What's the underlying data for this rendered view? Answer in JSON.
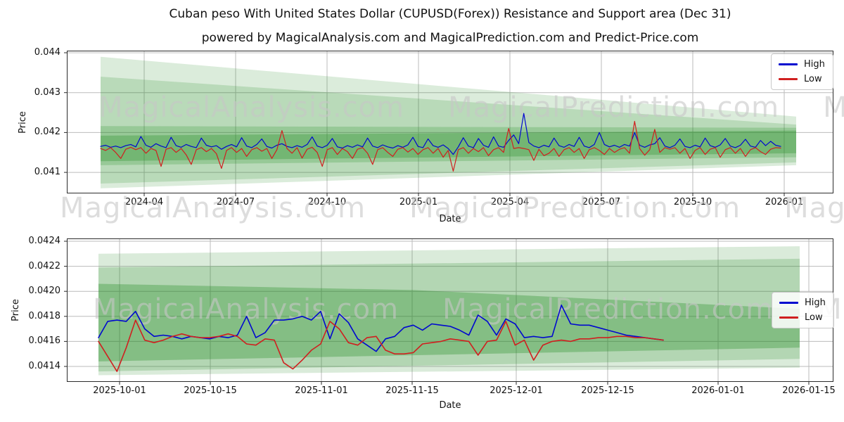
{
  "title": "Cuban peso With United States Dollar (CUPUSD(Forex)) Resistance and Support area (Dec 31)",
  "subtitle": "powered by MagicalAnalysis.com and MagicalPrediction.com and Predict-Price.com",
  "watermark": {
    "words": [
      "MagicalAnalysis.com",
      "MagicalPrediction.com",
      "MagicalAnalysis.com"
    ]
  },
  "colors": {
    "high": "#0008cf",
    "low": "#d01f1f",
    "band_green": "#228B22",
    "grid": "#bbbbbb",
    "spine": "#2b2b2b"
  },
  "chart_data": [
    {
      "type": "line",
      "xlabel": "Date",
      "ylabel": "Price",
      "x_tick_labels": [
        "2024-04",
        "2024-07",
        "2024-10",
        "2025-01",
        "2025-04",
        "2025-07",
        "2025-10",
        "2026-01"
      ],
      "y_tick_labels": [
        "0.044",
        "0.043",
        "0.042",
        "0.041"
      ],
      "y_tick_values": [
        0.044,
        0.043,
        0.042,
        0.041
      ],
      "ylim": [
        0.04047,
        0.04405
      ],
      "x_range": [
        "2024-02-17",
        "2025-12-28"
      ],
      "grid": true,
      "legend_position": "upper right",
      "series": [
        {
          "name": "High",
          "values": [
            0.04165,
            0.04168,
            0.04163,
            0.04166,
            0.04162,
            0.04167,
            0.0417,
            0.04164,
            0.0419,
            0.04168,
            0.04163,
            0.04172,
            0.04166,
            0.04162,
            0.04188,
            0.04167,
            0.04163,
            0.0417,
            0.04165,
            0.04162,
            0.04186,
            0.04168,
            0.04164,
            0.04167,
            0.04158,
            0.04165,
            0.0417,
            0.04164,
            0.04187,
            0.04166,
            0.04162,
            0.0417,
            0.04184,
            0.04165,
            0.04161,
            0.04168,
            0.04172,
            0.04165,
            0.04162,
            0.04167,
            0.04163,
            0.0417,
            0.04189,
            0.04166,
            0.04162,
            0.04168,
            0.04185,
            0.04164,
            0.04161,
            0.04167,
            0.04163,
            0.04169,
            0.04164,
            0.04186,
            0.04166,
            0.04162,
            0.04169,
            0.04164,
            0.04161,
            0.04167,
            0.04163,
            0.04169,
            0.04188,
            0.04165,
            0.04162,
            0.04184,
            0.04167,
            0.04163,
            0.04169,
            0.0416,
            0.04145,
            0.04164,
            0.04187,
            0.04166,
            0.04162,
            0.04185,
            0.04168,
            0.04163,
            0.04189,
            0.04166,
            0.04163,
            0.0418,
            0.04194,
            0.04172,
            0.04248,
            0.04175,
            0.04166,
            0.04162,
            0.04168,
            0.04164,
            0.04186,
            0.04167,
            0.04163,
            0.0417,
            0.04165,
            0.04188,
            0.04166,
            0.04162,
            0.0417,
            0.042,
            0.0417,
            0.04164,
            0.04168,
            0.04163,
            0.0417,
            0.04166,
            0.042,
            0.04168,
            0.04163,
            0.04169,
            0.04172,
            0.04187,
            0.04166,
            0.04162,
            0.04168,
            0.04184,
            0.04165,
            0.04162,
            0.04168,
            0.04164,
            0.04186,
            0.04167,
            0.04163,
            0.04169,
            0.04185,
            0.04166,
            0.04162,
            0.04168,
            0.04183,
            0.04166,
            0.04163,
            0.0418,
            0.04167,
            0.04178,
            0.04168,
            0.04165
          ]
        },
        {
          "name": "Low",
          "values": [
            0.0416,
            0.04155,
            0.04162,
            0.0415,
            0.04135,
            0.04158,
            0.04163,
            0.04157,
            0.04162,
            0.04148,
            0.0416,
            0.04155,
            0.04115,
            0.04158,
            0.04162,
            0.0415,
            0.0416,
            0.04144,
            0.0412,
            0.04157,
            0.04162,
            0.04152,
            0.0416,
            0.04147,
            0.0411,
            0.04155,
            0.04162,
            0.0415,
            0.0416,
            0.0414,
            0.04157,
            0.04162,
            0.04153,
            0.0416,
            0.04135,
            0.04157,
            0.04205,
            0.0416,
            0.04148,
            0.04162,
            0.04136,
            0.04158,
            0.04163,
            0.0415,
            0.04115,
            0.04157,
            0.04162,
            0.04145,
            0.0416,
            0.04152,
            0.04135,
            0.04158,
            0.04162,
            0.04148,
            0.0412,
            0.04157,
            0.04162,
            0.0415,
            0.0414,
            0.04158,
            0.04162,
            0.04151,
            0.0416,
            0.04145,
            0.04157,
            0.04162,
            0.04148,
            0.0416,
            0.04138,
            0.04155,
            0.04103,
            0.04157,
            0.04162,
            0.04148,
            0.0416,
            0.04152,
            0.04162,
            0.04142,
            0.04157,
            0.04162,
            0.0415,
            0.0421,
            0.0416,
            0.04162,
            0.0416,
            0.04157,
            0.0413,
            0.04158,
            0.04142,
            0.04148,
            0.0416,
            0.0414,
            0.04157,
            0.04162,
            0.0415,
            0.0416,
            0.04135,
            0.04157,
            0.04162,
            0.04155,
            0.04145,
            0.0416,
            0.0415,
            0.04158,
            0.04162,
            0.04148,
            0.04228,
            0.0416,
            0.04143,
            0.04157,
            0.04208,
            0.0415,
            0.04162,
            0.04158,
            0.04162,
            0.04148,
            0.0416,
            0.04135,
            0.04155,
            0.04162,
            0.04145,
            0.04158,
            0.04162,
            0.04138,
            0.04157,
            0.04162,
            0.04148,
            0.0416,
            0.0414,
            0.04157,
            0.04162,
            0.04152,
            0.04145,
            0.04158,
            0.04162,
            0.04161
          ]
        }
      ],
      "bands": [
        {
          "alpha": 0.16,
          "top": [
            [
              0,
              0.0439
            ],
            [
              1,
              0.0424
            ]
          ],
          "bottom": [
            [
              0,
              0.0406
            ],
            [
              1,
              0.04118
            ]
          ]
        },
        {
          "alpha": 0.18,
          "top": [
            [
              0,
              0.0434
            ],
            [
              1,
              0.0422
            ]
          ],
          "bottom": [
            [
              0,
              0.04072
            ],
            [
              1,
              0.04125
            ]
          ]
        },
        {
          "alpha": 0.22,
          "top": [
            [
              0,
              0.04216
            ],
            [
              1,
              0.04212
            ]
          ],
          "bottom": [
            [
              0,
              0.04118
            ],
            [
              1,
              0.04138
            ]
          ]
        },
        {
          "alpha": 0.3,
          "top": [
            [
              0,
              0.04192
            ],
            [
              1,
              0.04205
            ]
          ],
          "bottom": [
            [
              0,
              0.04128
            ],
            [
              1,
              0.04148
            ]
          ]
        }
      ]
    },
    {
      "type": "line",
      "xlabel": "Date",
      "ylabel": "Price",
      "x_tick_labels": [
        "2025-10-01",
        "2025-10-15",
        "2025-11-01",
        "2025-11-15",
        "2025-12-01",
        "2025-12-15",
        "2026-01-01",
        "2026-01-15"
      ],
      "y_tick_labels": [
        "0.0424",
        "0.0422",
        "0.0420",
        "0.0418",
        "0.0416",
        "0.0414"
      ],
      "y_tick_values": [
        0.0424,
        0.0422,
        0.042,
        0.0418,
        0.0416,
        0.0414
      ],
      "ylim": [
        0.041277,
        0.042422
      ],
      "x_range": [
        "2025-09-28",
        "2025-12-24"
      ],
      "grid": true,
      "legend_position": "center right",
      "series": [
        {
          "name": "High",
          "values": [
            0.04163,
            0.04176,
            0.04177,
            0.04176,
            0.04184,
            0.0417,
            0.04164,
            0.04165,
            0.04164,
            0.04162,
            0.04164,
            0.04163,
            0.04162,
            0.04164,
            0.04163,
            0.04165,
            0.0418,
            0.04163,
            0.04167,
            0.04177,
            0.04177,
            0.04178,
            0.0418,
            0.04177,
            0.04184,
            0.04162,
            0.04182,
            0.04175,
            0.04162,
            0.04157,
            0.04152,
            0.04162,
            0.04164,
            0.04171,
            0.04173,
            0.04169,
            0.04174,
            0.04173,
            0.04172,
            0.04169,
            0.04165,
            0.04181,
            0.04176,
            0.04165,
            0.04178,
            0.04174,
            0.04163,
            0.04164,
            0.04163,
            0.04164,
            0.04189,
            0.04174,
            0.04173,
            0.04173,
            0.04171,
            0.04169,
            0.04167,
            0.04165,
            0.04164,
            0.04163,
            0.04162,
            0.04161
          ]
        },
        {
          "name": "Low",
          "values": [
            0.0416,
            0.04148,
            0.04136,
            0.04155,
            0.04177,
            0.04161,
            0.04159,
            0.04161,
            0.04164,
            0.04166,
            0.04164,
            0.04163,
            0.04163,
            0.04164,
            0.04166,
            0.04164,
            0.04158,
            0.04157,
            0.04162,
            0.04161,
            0.04143,
            0.04138,
            0.04145,
            0.04153,
            0.04158,
            0.04176,
            0.0417,
            0.04159,
            0.04157,
            0.04163,
            0.04164,
            0.04153,
            0.0415,
            0.0415,
            0.04151,
            0.04158,
            0.04159,
            0.0416,
            0.04162,
            0.04161,
            0.0416,
            0.04149,
            0.0416,
            0.04161,
            0.04176,
            0.04157,
            0.04161,
            0.04145,
            0.04157,
            0.0416,
            0.04161,
            0.0416,
            0.04162,
            0.04162,
            0.04163,
            0.04163,
            0.04164,
            0.04164,
            0.04163,
            0.04163,
            0.04162,
            0.04161
          ]
        }
      ],
      "bands": [
        {
          "alpha": 0.17,
          "top": [
            [
              0,
              0.0423
            ],
            [
              1,
              0.04236
            ]
          ],
          "bottom": [
            [
              0,
              0.04133
            ],
            [
              1,
              0.04139
            ]
          ]
        },
        {
          "alpha": 0.21,
          "top": [
            [
              0,
              0.04219
            ],
            [
              1,
              0.04226
            ]
          ],
          "bottom": [
            [
              0,
              0.04136
            ],
            [
              1,
              0.04146
            ]
          ]
        },
        {
          "alpha": 0.32,
          "top": [
            [
              0,
              0.04206
            ],
            [
              0.45,
              0.04201
            ],
            [
              1,
              0.04186
            ]
          ],
          "bottom": [
            [
              0,
              0.04144
            ],
            [
              1,
              0.04155
            ]
          ]
        }
      ]
    }
  ],
  "legend": {
    "high_label": "High",
    "low_label": "Low"
  }
}
